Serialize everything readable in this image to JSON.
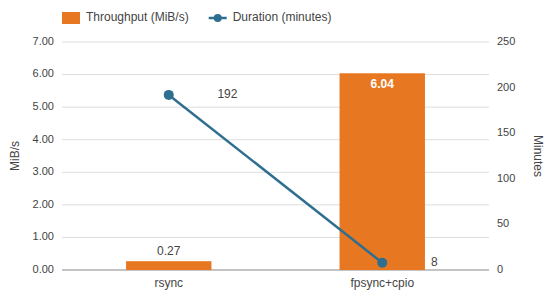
{
  "chart_data": {
    "type": "bar",
    "categories": [
      "rsync",
      "fpsync+cpio"
    ],
    "series": [
      {
        "name": "Throughput (MiB/s)",
        "type": "bar",
        "color": "#E87722",
        "values": [
          0.27,
          6.04
        ],
        "data_labels": true
      },
      {
        "name": "Duration (minutes)",
        "type": "line",
        "axis": "y2",
        "color": "#2E6E8E",
        "marker": "circle",
        "values": [
          192,
          8
        ],
        "data_labels": true
      }
    ],
    "ylabel": "MiB/s",
    "y2label": "Minutes",
    "ylim": [
      0,
      7.0
    ],
    "yticks": [
      {
        "value": 0.0,
        "label": "0.00"
      },
      {
        "value": 1.0,
        "label": "1.00"
      },
      {
        "value": 2.0,
        "label": "2.00"
      },
      {
        "value": 3.0,
        "label": "3.00"
      },
      {
        "value": 4.0,
        "label": "4.00"
      },
      {
        "value": 5.0,
        "label": "5.00"
      },
      {
        "value": 6.0,
        "label": "6.00"
      },
      {
        "value": 7.0,
        "label": "7.00"
      }
    ],
    "y2lim": [
      0,
      250
    ],
    "y2ticks": [
      0,
      50,
      100,
      150,
      200,
      250
    ],
    "grid": true,
    "legend": "top"
  }
}
